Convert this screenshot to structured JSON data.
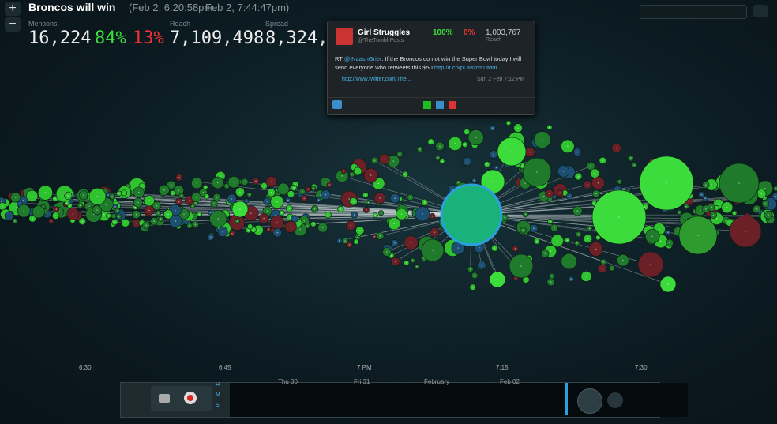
{
  "header": {
    "title": "Broncos will win",
    "range_start": "(Feb 2, 6:20:58pm",
    "range_end": "Feb 2, 7:44:47pm)"
  },
  "controls": {
    "zoom_in": "+",
    "zoom_out": "−"
  },
  "stats": {
    "mentions_label": "Mentions",
    "mentions": "16,224",
    "positive": "84%",
    "negative": "13%",
    "reach_label": "Reach",
    "reach": "7,109,498",
    "spread_label": "Spread",
    "spread": "8,324,"
  },
  "tweet": {
    "name": "Girl Struggles",
    "handle": "@TheTumblrPosts",
    "positive": "100%",
    "negative": "0%",
    "reach": "1,003,767",
    "reach_label": "Reach",
    "text": [
      "RT ",
      "@iNaashGrier",
      ": If the Broncos do not win the Super Bowl today I will send everyone who retweets this $50 ",
      "http://t.co/pOMzns1tMm"
    ],
    "link": "http://www.twitter.com/The...",
    "time": "Sun 2 Feb 7:12 PM"
  },
  "time_axis": [
    "6:30",
    "6:45",
    "7 PM",
    "7:15",
    "7:30"
  ],
  "timeline": {
    "labels": [
      "Thu 30",
      "Fri 31",
      "February",
      "Feb 02"
    ],
    "units": [
      "H",
      "M",
      "S"
    ]
  }
}
